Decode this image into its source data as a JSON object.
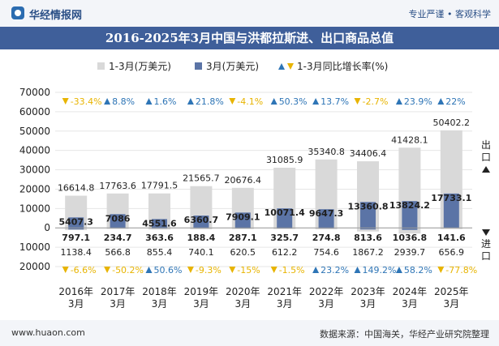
{
  "header": {
    "brand": "华经情报网",
    "slogan": "专业严谨 • 客观科学"
  },
  "title": "2016-2025年3月中国与洪都拉斯进、出口商品总值",
  "side_labels": {
    "export": "出口",
    "import": "进口"
  },
  "footer": {
    "site": "www.huaon.com",
    "source": "数据来源：中国海关，华经产业研究院整理"
  },
  "colors": {
    "cumulative_bar": "#d9d9d9",
    "monthly_bar": "#5b74a6",
    "growth_up": "#2e75b6",
    "growth_down": "#e8b400",
    "title_bg": "#3f5f9a"
  },
  "chart_data": {
    "type": "bar",
    "categories": [
      "2016年3月",
      "2017年3月",
      "2018年3月",
      "2019年3月",
      "2020年3月",
      "2021年3月",
      "2022年3月",
      "2023年3月",
      "2024年3月",
      "2025年3月"
    ],
    "category_lines": [
      [
        "2016年",
        "3月"
      ],
      [
        "2017年",
        "3月"
      ],
      [
        "2018年",
        "3月"
      ],
      [
        "2019年",
        "3月"
      ],
      [
        "2020年",
        "3月"
      ],
      [
        "2021年",
        "3月"
      ],
      [
        "2022年",
        "3月"
      ],
      [
        "2023年",
        "3月"
      ],
      [
        "2024年",
        "3月"
      ],
      [
        "2025年",
        "3月"
      ]
    ],
    "legend": [
      "1-3月(万美元)",
      "3月(万美元)",
      "1-3月同比增长率(%)"
    ],
    "legend_position": "top-center",
    "ylim": [
      -20000,
      70000
    ],
    "yticks": [
      -20000,
      -10000,
      0,
      10000,
      20000,
      30000,
      40000,
      50000,
      60000,
      70000
    ],
    "ytick_labels": [
      "20000",
      "10000",
      "0",
      "10000",
      "20000",
      "30000",
      "40000",
      "50000",
      "60000",
      "70000"
    ],
    "series": [
      {
        "name": "1-3月(万美元)",
        "role": "出口",
        "values": [
          16614.8,
          17763.6,
          17791.5,
          21565.7,
          20676.4,
          31085.9,
          35340.8,
          34406.4,
          41428.1,
          50402.2
        ]
      },
      {
        "name": "3月(万美元)",
        "role": "出口",
        "values": [
          5407.3,
          7086,
          4551.6,
          6360.7,
          7909.1,
          10071.4,
          9647.3,
          13360.8,
          13824.2,
          17733.1
        ]
      },
      {
        "name": "1-3月(万美元)",
        "role": "进口",
        "values": [
          1138.4,
          566.8,
          855.4,
          740.1,
          620.5,
          612.2,
          754.6,
          1867.2,
          2939.7,
          656.9
        ]
      },
      {
        "name": "3月(万美元)",
        "role": "进口",
        "values": [
          797.1,
          234.7,
          363.6,
          188.4,
          287.1,
          325.7,
          274.8,
          813.6,
          1036.8,
          141.6
        ]
      }
    ],
    "growth_export": [
      -33.4,
      8.8,
      1.6,
      21.8,
      -4.1,
      50.3,
      13.7,
      -2.7,
      23.9,
      22
    ],
    "growth_import": [
      -6.6,
      -50.2,
      50.6,
      -9.3,
      -15,
      -1.5,
      23.2,
      149.2,
      58.2,
      -77.8
    ]
  }
}
